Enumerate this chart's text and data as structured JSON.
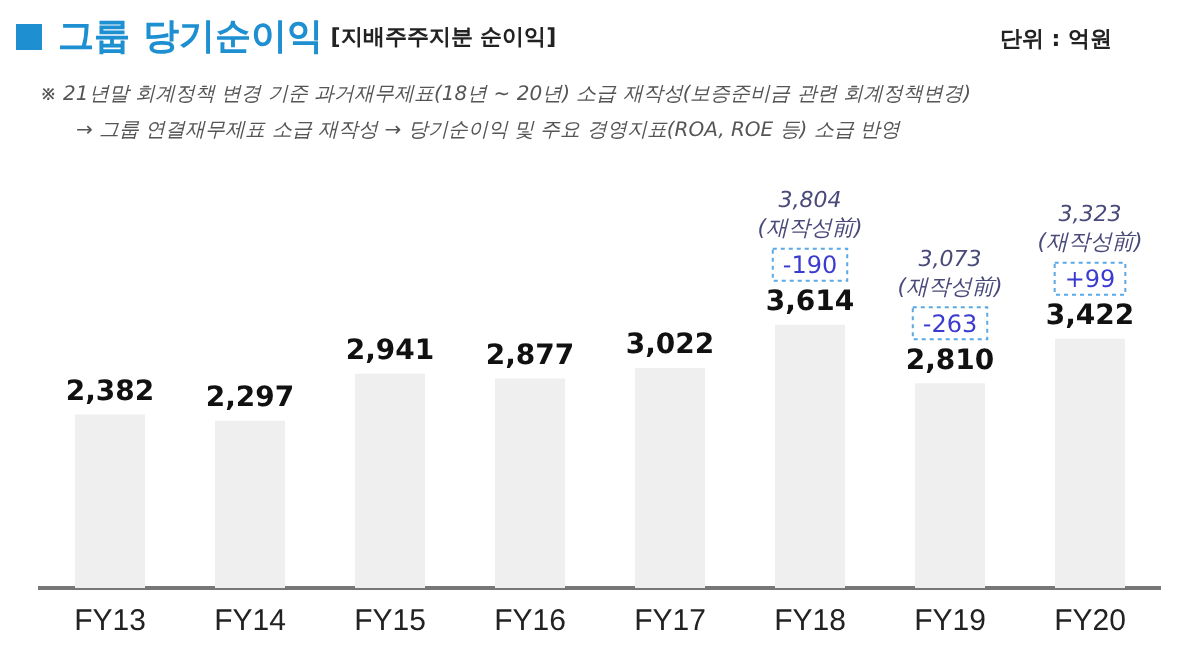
{
  "chart_data": {
    "type": "bar",
    "title": "그룹 당기순이익",
    "subtitle": "[지배주주지분 순이익]",
    "categories": [
      "FY13",
      "FY14",
      "FY15",
      "FY16",
      "FY17",
      "FY18",
      "FY19",
      "FY20"
    ],
    "values": [
      2382,
      2297,
      2941,
      2877,
      3022,
      3614,
      2810,
      3422
    ],
    "value_labels": [
      "2,382",
      "2,297",
      "2,941",
      "2,877",
      "3,022",
      "3,614",
      "2,810",
      "3,422"
    ],
    "color": "#efefef",
    "grid": false,
    "legend": false,
    "annotations": [
      "단위 : 억원",
      "※ 21년말 회계정책 변경 기준 과거재무제표(18년 ~ 20년) 소급 재작성(보증준비금 관련 회계정책변경)",
      "→ 그룹 연결재무제표 소급 재작성  →  당기순이익 및 주요 경영지표(ROA, ROE 등) 소급 반영",
      "3,804",
      "(재작성前)",
      "-190",
      "3,073",
      "(재작성前)",
      "-263",
      "3,323",
      "(재작성前)",
      "+99"
    ]
  }
}
